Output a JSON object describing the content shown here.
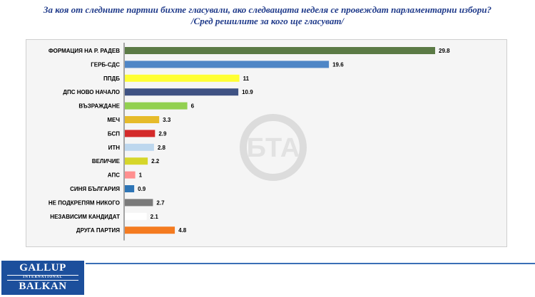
{
  "header": {
    "title": "За коя от следните партии бихте  гласували,  ако следващата неделя се провеждат парламентарни избори?",
    "subtitle": "/Сред решилите за кого ще гласуват/"
  },
  "watermark": {
    "text": "БТА"
  },
  "logo": {
    "line1": "GALLUP",
    "line2": "INTERNATIONAL",
    "line3": "BALKAN"
  },
  "colors": {
    "title": "#1f3a8a",
    "logo_bg": "#1c4f9c",
    "accent_line": "#3a6fb6"
  },
  "chart_data": {
    "type": "bar",
    "orientation": "horizontal",
    "title": "",
    "xlabel": "",
    "ylabel": "",
    "xlim": [
      0,
      30
    ],
    "grid": false,
    "legend": "none",
    "categories": [
      "ФОРМАЦИЯ НА Р. РАДЕВ",
      "ГЕРБ-СДС",
      "ППДБ",
      "ДПС НОВО НАЧАЛО",
      "ВЪЗРАЖДАНЕ",
      "МЕЧ",
      "БСП",
      "ИТН",
      "ВЕЛИЧИЕ",
      "АПС",
      "СИНЯ БЪЛГАРИЯ",
      "НЕ ПОДКРЕПЯМ НИКОГО",
      "НЕЗАВИСИМ КАНДИДАТ",
      "ДРУГА ПАРТИЯ"
    ],
    "values": [
      29.8,
      19.6,
      11,
      10.9,
      6,
      3.3,
      2.9,
      2.8,
      2.2,
      1,
      0.9,
      2.7,
      2.1,
      4.8
    ],
    "value_labels": [
      "29.8",
      "19.6",
      "11",
      "10.9",
      "6",
      "3.3",
      "2.9",
      "2.8",
      "2.2",
      "1",
      "0.9",
      "2.7",
      "2.1",
      "4.8"
    ],
    "bar_colors": [
      "#5b7a45",
      "#4f86c6",
      "#ffff33",
      "#3f5283",
      "#92d050",
      "#e6bb29",
      "#d42a2a",
      "#bdd7ee",
      "#d6d62a",
      "#ff8f8f",
      "#2e75b6",
      "#7a7a7a",
      "#ffffff",
      "#f47b20"
    ]
  }
}
